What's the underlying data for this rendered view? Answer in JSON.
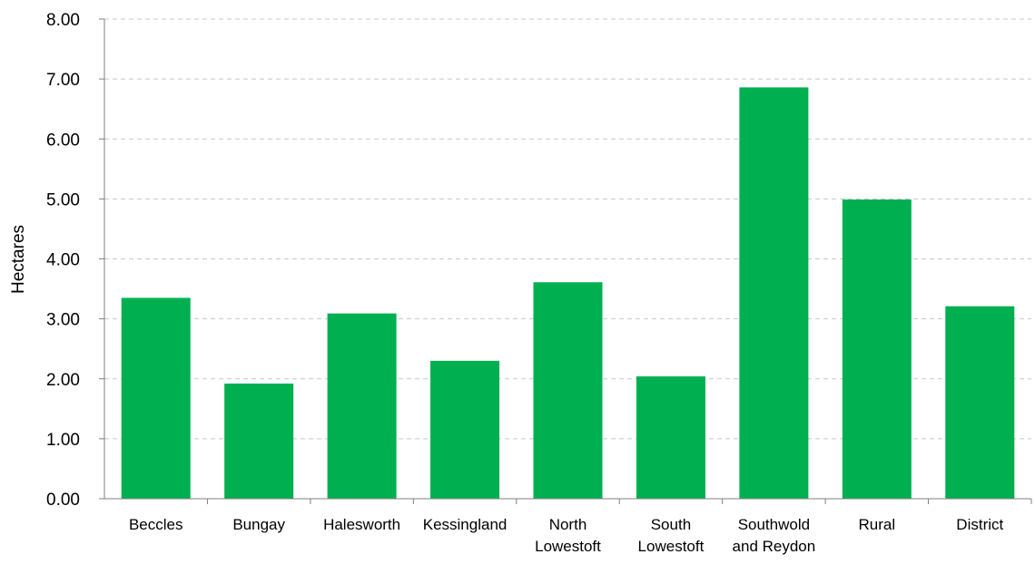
{
  "chart_data": {
    "type": "bar",
    "title": "",
    "xlabel": "",
    "ylabel": "Hectares",
    "ylim": [
      0,
      8
    ],
    "yticks": [
      "0.00",
      "1.00",
      "2.00",
      "3.00",
      "4.00",
      "5.00",
      "6.00",
      "7.00",
      "8.00"
    ],
    "grid": true,
    "categories": [
      [
        "Beccles"
      ],
      [
        "Bungay"
      ],
      [
        "Halesworth"
      ],
      [
        "Kessingland"
      ],
      [
        "North",
        "Lowestoft"
      ],
      [
        "South",
        "Lowestoft"
      ],
      [
        "Southwold",
        "and Reydon"
      ],
      [
        "Rural"
      ],
      [
        "District"
      ]
    ],
    "values": [
      3.35,
      1.92,
      3.09,
      2.3,
      3.61,
      2.04,
      6.86,
      4.99,
      3.21
    ],
    "bar_color": "#00b050"
  }
}
